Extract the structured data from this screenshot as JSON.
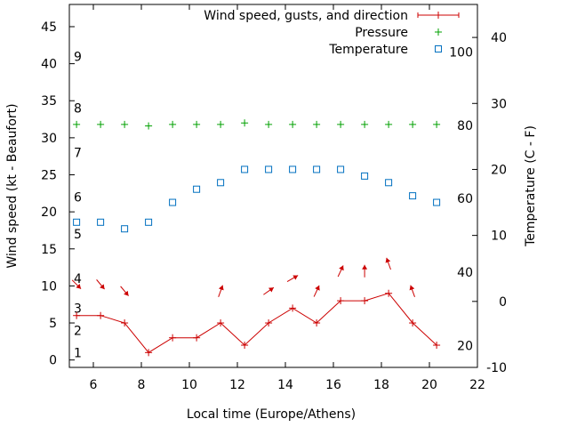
{
  "chart_data": {
    "type": "line",
    "xlabel": "Local time (Europe/Athens)",
    "ylabel": "Wind speed (kt - Beaufort)",
    "y2label": "Temperature (C - F)",
    "xlim": [
      5,
      22
    ],
    "ylim": [
      -1,
      48
    ],
    "y2lim": [
      -10,
      45
    ],
    "xticks": [
      6,
      8,
      10,
      12,
      14,
      16,
      18,
      20,
      22
    ],
    "yticks": [
      0,
      5,
      10,
      15,
      20,
      25,
      30,
      35,
      40,
      45
    ],
    "y2ticks": [
      -10,
      0,
      10,
      20,
      30,
      40
    ],
    "beaufort_labels": [
      {
        "label": "1",
        "y": 1
      },
      {
        "label": "2",
        "y": 4
      },
      {
        "label": "3",
        "y": 7
      },
      {
        "label": "4",
        "y": 11
      },
      {
        "label": "5",
        "y": 17
      },
      {
        "label": "6",
        "y": 22
      },
      {
        "label": "7",
        "y": 28
      },
      {
        "label": "8",
        "y": 34
      },
      {
        "label": "9",
        "y": 41
      }
    ],
    "fahrenheit_labels": [
      {
        "label": "20",
        "y2": -6.7
      },
      {
        "label": "40",
        "y2": 4.4
      },
      {
        "label": "60",
        "y2": 15.6
      },
      {
        "label": "80",
        "y2": 26.7
      },
      {
        "label": "100",
        "y2": 37.8
      }
    ],
    "legend": [
      {
        "label": "Wind speed, gusts, and direction"
      },
      {
        "label": "Pressure"
      },
      {
        "label": "Temperature"
      }
    ],
    "series": [
      {
        "name": "Wind speed, gusts, and direction",
        "color": "#cc0000",
        "x": [
          5.3,
          6.3,
          7.3,
          8.3,
          9.3,
          10.3,
          11.3,
          12.3,
          13.3,
          14.3,
          15.3,
          16.3,
          17.3,
          18.3,
          19.3,
          20.3
        ],
        "y": [
          6,
          6,
          5,
          1,
          3,
          3,
          5,
          2,
          5,
          7,
          5,
          8,
          8,
          9,
          5,
          2
        ]
      },
      {
        "name": "Pressure",
        "color": "#00a000",
        "x": [
          5.3,
          6.3,
          7.3,
          8.3,
          9.3,
          10.3,
          11.3,
          12.3,
          13.3,
          14.3,
          15.3,
          16.3,
          17.3,
          18.3,
          19.3,
          20.3
        ],
        "y": [
          31.8,
          31.8,
          31.8,
          31.6,
          31.8,
          31.8,
          31.8,
          32.0,
          31.8,
          31.8,
          31.8,
          31.8,
          31.8,
          31.8,
          31.8,
          31.8
        ]
      },
      {
        "name": "Temperature",
        "color": "#0070c0",
        "x": [
          5.3,
          6.3,
          7.3,
          8.3,
          9.3,
          10.3,
          11.3,
          12.3,
          13.3,
          14.3,
          15.3,
          16.3,
          17.3,
          18.3,
          19.3,
          20.3
        ],
        "y2": [
          12,
          12,
          11,
          12,
          15,
          17,
          18,
          20,
          20,
          20,
          20,
          20,
          19,
          18,
          16,
          15
        ]
      }
    ],
    "wind_direction_arrows": [
      {
        "x": 5.3,
        "y": 10.2,
        "dir_deg": 315
      },
      {
        "x": 6.3,
        "y": 10.2,
        "dir_deg": 320
      },
      {
        "x": 7.3,
        "y": 9.3,
        "dir_deg": 320
      },
      {
        "x": 11.3,
        "y": 9.3,
        "dir_deg": 200
      },
      {
        "x": 13.3,
        "y": 9.3,
        "dir_deg": 235
      },
      {
        "x": 14.3,
        "y": 11.0,
        "dir_deg": 240
      },
      {
        "x": 15.3,
        "y": 9.3,
        "dir_deg": 205
      },
      {
        "x": 16.3,
        "y": 12.0,
        "dir_deg": 205
      },
      {
        "x": 17.3,
        "y": 12.0,
        "dir_deg": 180
      },
      {
        "x": 18.3,
        "y": 13.0,
        "dir_deg": 160
      },
      {
        "x": 19.3,
        "y": 9.3,
        "dir_deg": 160
      }
    ]
  }
}
